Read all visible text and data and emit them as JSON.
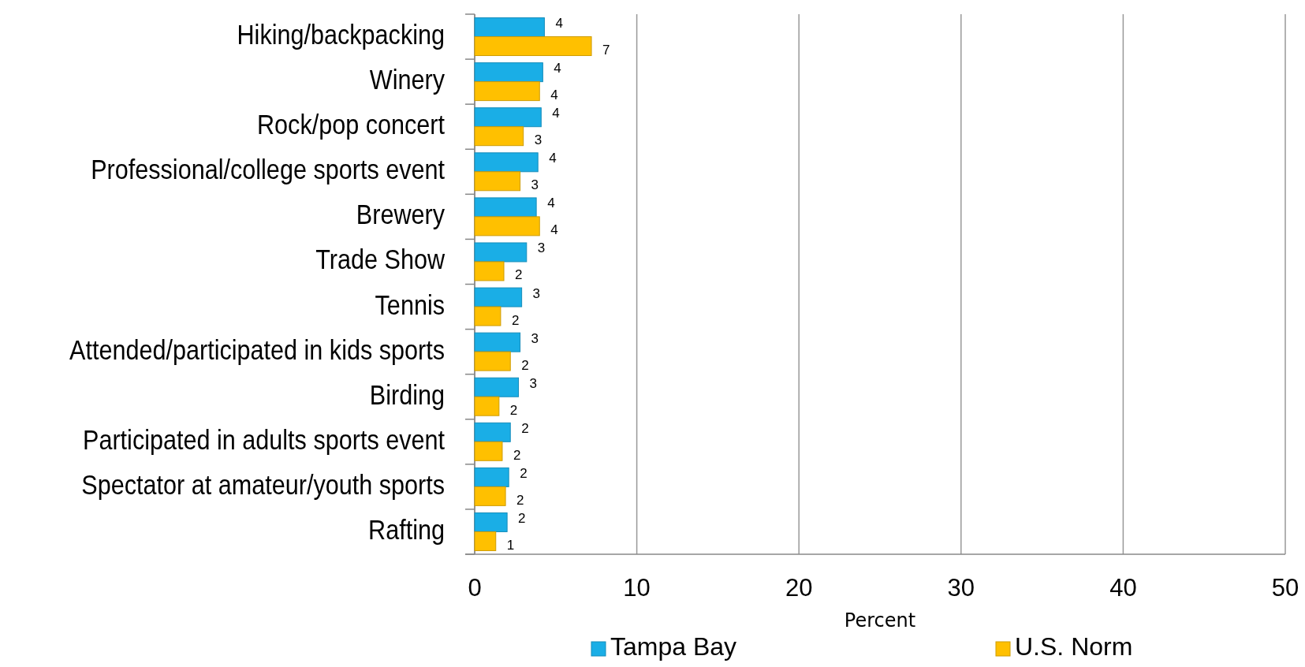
{
  "chart_data": {
    "type": "bar",
    "orientation": "horizontal",
    "xlabel": "Percent",
    "categories": [
      "Hiking/backpacking",
      "Winery",
      "Rock/pop concert",
      "Professional/college sports event",
      "Brewery",
      "Trade Show",
      "Tennis",
      "Attended/participated in kids sports",
      "Birding",
      "Participated in adults sports event",
      "Spectator at amateur/youth sports",
      "Rafting"
    ],
    "series": [
      {
        "name": "Tampa Bay",
        "color": "#1aaee6",
        "values": [
          4.3,
          4.2,
          4.1,
          3.9,
          3.8,
          3.2,
          2.9,
          2.8,
          2.7,
          2.2,
          2.1,
          2.0
        ],
        "value_labels": [
          "4",
          "4",
          "4",
          "4",
          "4",
          "3",
          "3",
          "3",
          "3",
          "2",
          "2",
          "2"
        ]
      },
      {
        "name": "U.S. Norm",
        "color": "#ffc000",
        "values": [
          7.2,
          4.0,
          3.0,
          2.8,
          4.0,
          1.8,
          1.6,
          2.2,
          1.5,
          1.7,
          1.9,
          1.3
        ],
        "value_labels": [
          "7",
          "4",
          "3",
          "3",
          "4",
          "2",
          "2",
          "2",
          "2",
          "2",
          "2",
          "1"
        ]
      }
    ],
    "xlim": [
      0,
      50
    ],
    "xticks": [
      0,
      10,
      20,
      30,
      40,
      50
    ],
    "grid": "x",
    "legend": "bottom"
  }
}
